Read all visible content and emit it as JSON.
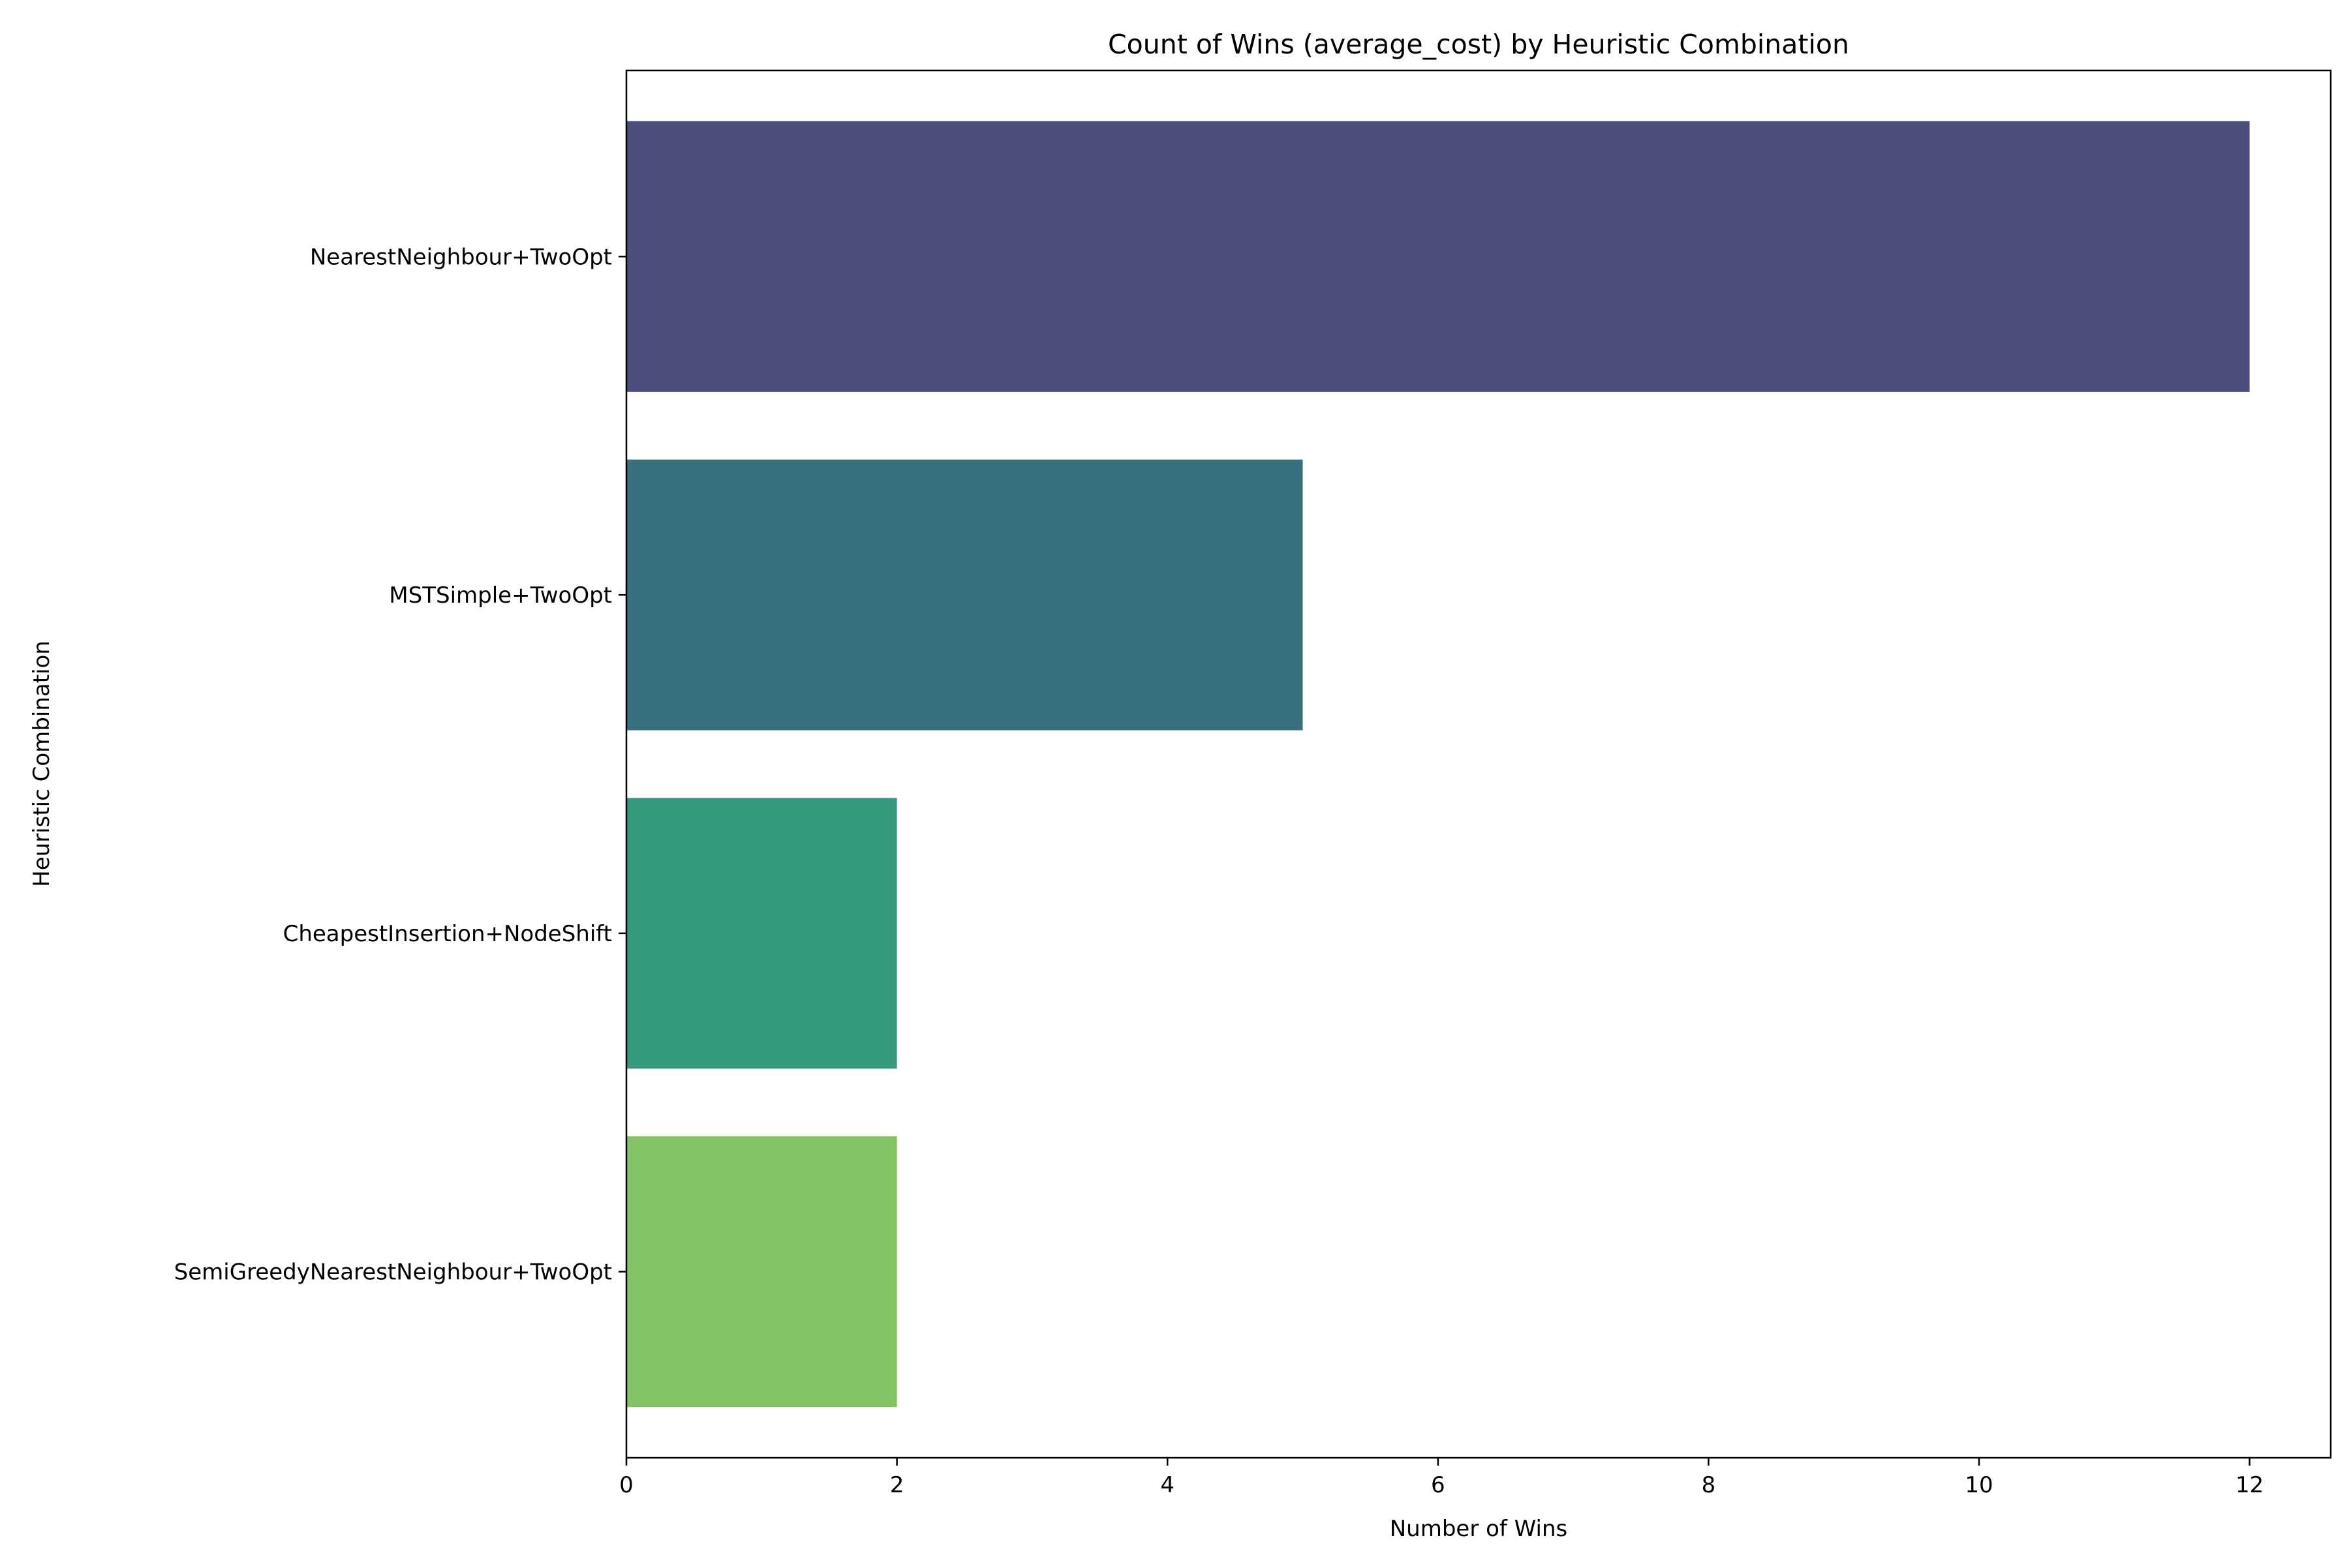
{
  "chart_data": {
    "type": "bar",
    "orientation": "horizontal",
    "title": "Count of Wins (average_cost) by Heuristic Combination",
    "xlabel": "Number of Wins",
    "ylabel": "Heuristic Combination",
    "categories": [
      "NearestNeighbour+TwoOpt",
      "MSTSimple+TwoOpt",
      "CheapestInsertion+NodeShift",
      "SemiGreedyNearestNeighbour+TwoOpt"
    ],
    "values": [
      12,
      5,
      2,
      2
    ],
    "colors": [
      "#4b4d7c",
      "#377180",
      "#35997d",
      "#82c363"
    ],
    "xlim": [
      0,
      12.6
    ],
    "xticks": [
      0,
      2,
      4,
      6,
      8,
      10,
      12
    ],
    "grid": false,
    "legend": "none"
  }
}
